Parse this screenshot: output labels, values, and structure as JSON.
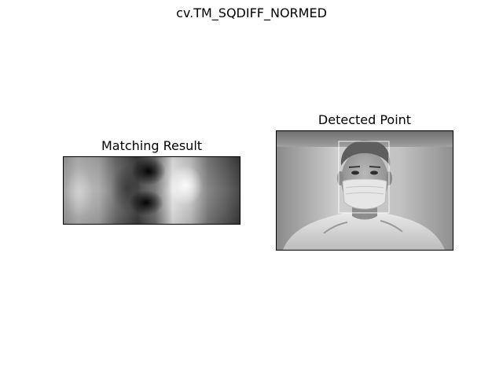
{
  "figure": {
    "title": "cv.TM_SQDIFF_NORMED"
  },
  "panels": {
    "matching_result": {
      "title": "Matching Result",
      "colormap": "gray"
    },
    "detected_point": {
      "title": "Detected Point",
      "colormap": "gray",
      "box_color": "#ffffff"
    }
  }
}
